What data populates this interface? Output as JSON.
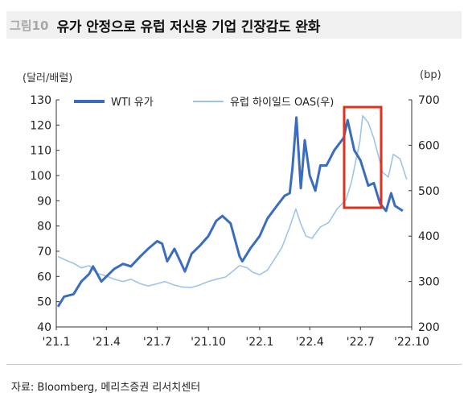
{
  "header": {
    "figure_number": "그림10",
    "title": "유가 안정으로 유럽 저신용 기업 긴장감도 완화"
  },
  "units": {
    "left": "(달러/배럴)",
    "right": "(bp)"
  },
  "source": "자료: Bloomberg, 메리츠증권 리서치센터",
  "colors": {
    "wti": "#3a6cc0",
    "oas": "#9fc4ea",
    "highlight": "#e0301e"
  },
  "chart_data": {
    "type": "line",
    "x_ticks": [
      "'21.1",
      "'21.4",
      "'21.7",
      "'21.10",
      "'22.1",
      "'22.4",
      "'22.7",
      "'22.10"
    ],
    "xlim": [
      "2021-01-01",
      "2022-10-01"
    ],
    "y_left": {
      "ylim": [
        40,
        130
      ],
      "ticks": [
        40,
        50,
        60,
        70,
        80,
        90,
        100,
        110,
        120,
        130
      ]
    },
    "y_right": {
      "ylim": [
        200,
        700
      ],
      "ticks": [
        200,
        300,
        400,
        500,
        600,
        700
      ]
    },
    "series": [
      {
        "name": "WTI 유가",
        "axis": "left",
        "points": [
          [
            "2021-01-04",
            48
          ],
          [
            "2021-01-15",
            52
          ],
          [
            "2021-02-01",
            53
          ],
          [
            "2021-02-15",
            58
          ],
          [
            "2021-03-01",
            61
          ],
          [
            "2021-03-08",
            64
          ],
          [
            "2021-03-23",
            58
          ],
          [
            "2021-04-01",
            60
          ],
          [
            "2021-04-15",
            63
          ],
          [
            "2021-05-01",
            65
          ],
          [
            "2021-05-15",
            64
          ],
          [
            "2021-06-01",
            68
          ],
          [
            "2021-06-15",
            71
          ],
          [
            "2021-07-01",
            74
          ],
          [
            "2021-07-10",
            73
          ],
          [
            "2021-07-19",
            66
          ],
          [
            "2021-08-01",
            71
          ],
          [
            "2021-08-20",
            62
          ],
          [
            "2021-09-01",
            69
          ],
          [
            "2021-09-15",
            72
          ],
          [
            "2021-10-01",
            76
          ],
          [
            "2021-10-15",
            82
          ],
          [
            "2021-10-26",
            84
          ],
          [
            "2021-11-10",
            81
          ],
          [
            "2021-11-26",
            68
          ],
          [
            "2021-12-01",
            66
          ],
          [
            "2021-12-15",
            71
          ],
          [
            "2022-01-01",
            76
          ],
          [
            "2022-01-15",
            83
          ],
          [
            "2022-02-01",
            88
          ],
          [
            "2022-02-15",
            92
          ],
          [
            "2022-02-24",
            93
          ],
          [
            "2022-03-01",
            103
          ],
          [
            "2022-03-08",
            123
          ],
          [
            "2022-03-16",
            95
          ],
          [
            "2022-03-23",
            114
          ],
          [
            "2022-04-01",
            100
          ],
          [
            "2022-04-11",
            94
          ],
          [
            "2022-04-20",
            104
          ],
          [
            "2022-05-01",
            104
          ],
          [
            "2022-05-15",
            110
          ],
          [
            "2022-06-01",
            115
          ],
          [
            "2022-06-08",
            122
          ],
          [
            "2022-06-20",
            110
          ],
          [
            "2022-07-01",
            106
          ],
          [
            "2022-07-15",
            96
          ],
          [
            "2022-07-25",
            97
          ],
          [
            "2022-08-05",
            89
          ],
          [
            "2022-08-16",
            86
          ],
          [
            "2022-08-25",
            93
          ],
          [
            "2022-09-01",
            88
          ],
          [
            "2022-09-15",
            86
          ]
        ]
      },
      {
        "name": "유럽 하이일드 OAS(우)",
        "axis": "right",
        "points": [
          [
            "2021-01-04",
            355
          ],
          [
            "2021-01-20",
            346
          ],
          [
            "2021-02-01",
            340
          ],
          [
            "2021-02-15",
            330
          ],
          [
            "2021-03-01",
            335
          ],
          [
            "2021-03-15",
            318
          ],
          [
            "2021-04-01",
            312
          ],
          [
            "2021-04-15",
            305
          ],
          [
            "2021-05-01",
            300
          ],
          [
            "2021-05-15",
            305
          ],
          [
            "2021-06-01",
            295
          ],
          [
            "2021-06-15",
            290
          ],
          [
            "2021-07-01",
            295
          ],
          [
            "2021-07-15",
            300
          ],
          [
            "2021-08-01",
            292
          ],
          [
            "2021-08-15",
            288
          ],
          [
            "2021-09-01",
            287
          ],
          [
            "2021-09-15",
            292
          ],
          [
            "2021-10-01",
            300
          ],
          [
            "2021-10-15",
            305
          ],
          [
            "2021-11-01",
            310
          ],
          [
            "2021-11-26",
            335
          ],
          [
            "2021-12-10",
            330
          ],
          [
            "2021-12-20",
            320
          ],
          [
            "2022-01-01",
            315
          ],
          [
            "2022-01-15",
            325
          ],
          [
            "2022-01-28",
            350
          ],
          [
            "2022-02-10",
            375
          ],
          [
            "2022-02-24",
            420
          ],
          [
            "2022-03-07",
            460
          ],
          [
            "2022-03-15",
            430
          ],
          [
            "2022-03-25",
            400
          ],
          [
            "2022-04-05",
            395
          ],
          [
            "2022-04-20",
            420
          ],
          [
            "2022-05-05",
            430
          ],
          [
            "2022-05-20",
            460
          ],
          [
            "2022-06-05",
            480
          ],
          [
            "2022-06-15",
            520
          ],
          [
            "2022-06-30",
            610
          ],
          [
            "2022-07-05",
            665
          ],
          [
            "2022-07-15",
            650
          ],
          [
            "2022-07-25",
            615
          ],
          [
            "2022-08-10",
            540
          ],
          [
            "2022-08-20",
            530
          ],
          [
            "2022-08-29",
            580
          ],
          [
            "2022-09-10",
            570
          ],
          [
            "2022-09-18",
            540
          ],
          [
            "2022-09-22",
            525
          ]
        ]
      }
    ]
  }
}
